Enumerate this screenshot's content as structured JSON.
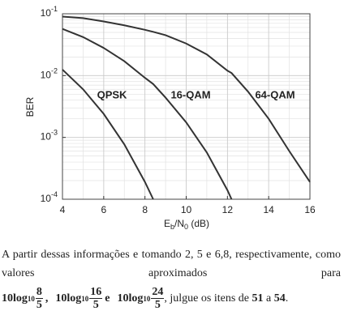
{
  "chart_data": {
    "type": "line",
    "xlabel": "Eb/N0 (dB)",
    "ylabel": "BER",
    "x": [
      4,
      5,
      6,
      7,
      8,
      8.4,
      9,
      10,
      11,
      12,
      12.2,
      13,
      14,
      15,
      16
    ],
    "series": [
      {
        "name": "QPSK",
        "color": "#333333",
        "values": [
          0.0125,
          0.006,
          0.0024,
          0.00077,
          0.00019,
          0.0001,
          null,
          null,
          null,
          null,
          null,
          null,
          null,
          null,
          null
        ]
      },
      {
        "name": "16-QAM",
        "color": "#333333",
        "values": [
          0.057,
          0.042,
          0.028,
          0.0171,
          0.0092,
          0.0073,
          0.0044,
          0.00175,
          0.00057,
          0.00014,
          0.0001,
          null,
          null,
          null,
          null
        ]
      },
      {
        "name": "64-QAM",
        "color": "#333333",
        "values": [
          0.09,
          0.085,
          0.075,
          0.065,
          0.055,
          0.051,
          0.045,
          0.033,
          0.022,
          0.012,
          0.011,
          0.0055,
          0.002,
          0.0006,
          0.00019
        ]
      }
    ],
    "xlim": [
      4,
      16
    ],
    "xticks": [
      4,
      6,
      8,
      10,
      12,
      14,
      16
    ],
    "ylim": [
      0.0001,
      0.1
    ],
    "log_y": true,
    "yticks": [
      {
        "value": 0.1,
        "label": "10-1"
      },
      {
        "value": 0.01,
        "label": "10-2"
      },
      {
        "value": 0.001,
        "label": "10-3"
      },
      {
        "value": 0.0001,
        "label": "10-4"
      }
    ],
    "grid": true,
    "legend": "inline"
  },
  "text": {
    "paragraph": "A partir dessas informações e tomando 2, 5 e 6,8, respectivamente, como valores aproximados para",
    "formulas": [
      {
        "base": "10log",
        "sub": "10",
        "num": "8",
        "den": "5"
      },
      {
        "base": "10log",
        "sub": "10",
        "num": "16",
        "den": "5"
      },
      {
        "base": "10log",
        "sub": "10",
        "num": "24",
        "den": "5"
      }
    ],
    "separators": [
      ",",
      "e"
    ],
    "tail": [
      ", julgue os itens de ",
      "51",
      " a ",
      "54",
      "."
    ]
  }
}
